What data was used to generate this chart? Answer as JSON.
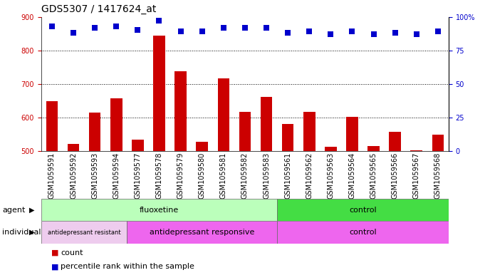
{
  "title": "GDS5307 / 1417624_at",
  "samples": [
    "GSM1059591",
    "GSM1059592",
    "GSM1059593",
    "GSM1059594",
    "GSM1059577",
    "GSM1059578",
    "GSM1059579",
    "GSM1059580",
    "GSM1059581",
    "GSM1059582",
    "GSM1059583",
    "GSM1059561",
    "GSM1059562",
    "GSM1059563",
    "GSM1059564",
    "GSM1059565",
    "GSM1059566",
    "GSM1059567",
    "GSM1059568"
  ],
  "bar_values": [
    648,
    522,
    614,
    657,
    534,
    843,
    738,
    528,
    716,
    618,
    662,
    580,
    617,
    513,
    603,
    516,
    558,
    503,
    550
  ],
  "percentile_values": [
    93,
    88,
    92,
    93,
    90,
    97,
    89,
    89,
    92,
    92,
    92,
    88,
    89,
    87,
    89,
    87,
    88,
    87,
    89
  ],
  "ylim_left": [
    500,
    900
  ],
  "ylim_right": [
    0,
    100
  ],
  "yticks_left": [
    500,
    600,
    700,
    800,
    900
  ],
  "yticks_right": [
    0,
    25,
    50,
    75,
    100
  ],
  "bar_color": "#cc0000",
  "dot_color": "#0000cc",
  "grid_color": "#000000",
  "plot_bg": "#ffffff",
  "agent_groups": [
    {
      "label": "fluoxetine",
      "start": 0,
      "end": 11,
      "color": "#bbffbb"
    },
    {
      "label": "control",
      "start": 11,
      "end": 19,
      "color": "#44dd44"
    }
  ],
  "individual_groups": [
    {
      "label": "antidepressant resistant",
      "start": 0,
      "end": 4,
      "color": "#eeccee"
    },
    {
      "label": "antidepressant responsive",
      "start": 4,
      "end": 11,
      "color": "#ee66ee"
    },
    {
      "label": "control",
      "start": 11,
      "end": 19,
      "color": "#ee66ee"
    }
  ],
  "bar_width": 0.55,
  "dot_size": 40,
  "title_fontsize": 10,
  "tick_fontsize": 7,
  "label_fontsize": 8,
  "group_fontsize": 8
}
